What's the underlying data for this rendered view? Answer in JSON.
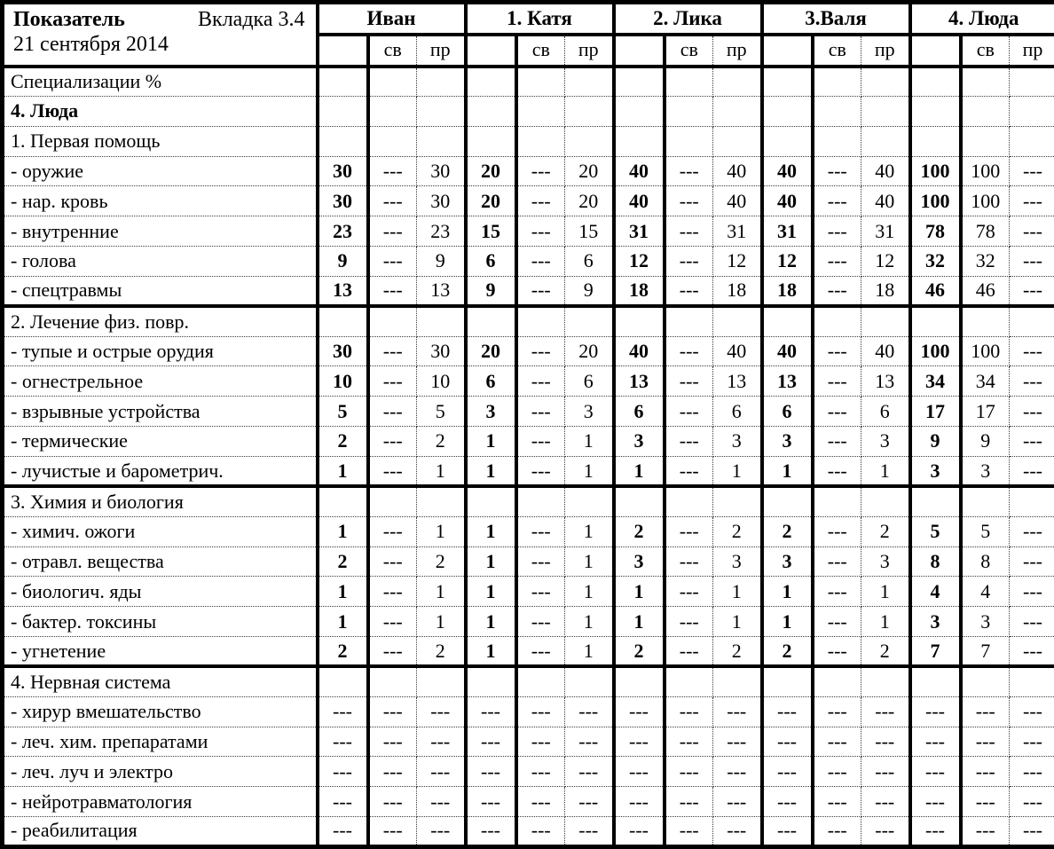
{
  "table": {
    "corner": {
      "title": "Показатель",
      "tab": "Вкладка 3.4",
      "date": "21 сентября 2014"
    },
    "subheaders": {
      "blank": "",
      "sv": "св",
      "pr": "пр"
    },
    "persons": [
      "Иван",
      "1. Катя",
      "2. Лика",
      "3.Валя",
      "4. Люда"
    ],
    "dash": "---",
    "rows": [
      {
        "label": "Специализации %",
        "cells": []
      },
      {
        "label": "4. Люда",
        "bold": true,
        "cells": []
      },
      {
        "label": "1. Первая помощь",
        "cells": []
      },
      {
        "label": "- оружие",
        "cells": [
          "30",
          "---",
          "30",
          "20",
          "---",
          "20",
          "40",
          "---",
          "40",
          "40",
          "---",
          "40",
          "100",
          "100",
          "---"
        ]
      },
      {
        "label": "- нар. кровь",
        "cells": [
          "30",
          "---",
          "30",
          "20",
          "---",
          "20",
          "40",
          "---",
          "40",
          "40",
          "---",
          "40",
          "100",
          "100",
          "---"
        ]
      },
      {
        "label": "- внутренние",
        "cells": [
          "23",
          "---",
          "23",
          "15",
          "---",
          "15",
          "31",
          "---",
          "31",
          "31",
          "---",
          "31",
          "78",
          "78",
          "---"
        ]
      },
      {
        "label": "- голова",
        "cells": [
          "9",
          "---",
          "9",
          "6",
          "---",
          "6",
          "12",
          "---",
          "12",
          "12",
          "---",
          "12",
          "32",
          "32",
          "---"
        ]
      },
      {
        "label": "- спецтравмы",
        "cells": [
          "13",
          "---",
          "13",
          "9",
          "---",
          "9",
          "18",
          "---",
          "18",
          "18",
          "---",
          "18",
          "46",
          "46",
          "---"
        ]
      },
      {
        "label": "2. Лечение физ. повр.",
        "section": true,
        "cells": []
      },
      {
        "label": "- тупые и острые орудия",
        "cells": [
          "30",
          "---",
          "30",
          "20",
          "---",
          "20",
          "40",
          "---",
          "40",
          "40",
          "---",
          "40",
          "100",
          "100",
          "---"
        ]
      },
      {
        "label": "- огнестрельное",
        "cells": [
          "10",
          "---",
          "10",
          "6",
          "---",
          "6",
          "13",
          "---",
          "13",
          "13",
          "---",
          "13",
          "34",
          "34",
          "---"
        ]
      },
      {
        "label": "- взрывные устройства",
        "cells": [
          "5",
          "---",
          "5",
          "3",
          "---",
          "3",
          "6",
          "---",
          "6",
          "6",
          "---",
          "6",
          "17",
          "17",
          "---"
        ]
      },
      {
        "label": "- термические",
        "cells": [
          "2",
          "---",
          "2",
          "1",
          "---",
          "1",
          "3",
          "---",
          "3",
          "3",
          "---",
          "3",
          "9",
          "9",
          "---"
        ]
      },
      {
        "label": "- лучистые и барометрич.",
        "cells": [
          "1",
          "---",
          "1",
          "1",
          "---",
          "1",
          "1",
          "---",
          "1",
          "1",
          "---",
          "1",
          "3",
          "3",
          "---"
        ]
      },
      {
        "label": "3. Химия и биология",
        "section": true,
        "cells": []
      },
      {
        "label": "- химич. ожоги",
        "cells": [
          "1",
          "---",
          "1",
          "1",
          "---",
          "1",
          "2",
          "---",
          "2",
          "2",
          "---",
          "2",
          "5",
          "5",
          "---"
        ]
      },
      {
        "label": "- отравл. вещества",
        "cells": [
          "2",
          "---",
          "2",
          "1",
          "---",
          "1",
          "3",
          "---",
          "3",
          "3",
          "---",
          "3",
          "8",
          "8",
          "---"
        ]
      },
      {
        "label": "- биологич. яды",
        "cells": [
          "1",
          "---",
          "1",
          "1",
          "---",
          "1",
          "1",
          "---",
          "1",
          "1",
          "---",
          "1",
          "4",
          "4",
          "---"
        ]
      },
      {
        "label": "- бактер. токсины",
        "cells": [
          "1",
          "---",
          "1",
          "1",
          "---",
          "1",
          "1",
          "---",
          "1",
          "1",
          "---",
          "1",
          "3",
          "3",
          "---"
        ]
      },
      {
        "label": "- угнетение",
        "cells": [
          "2",
          "---",
          "2",
          "1",
          "---",
          "1",
          "2",
          "---",
          "2",
          "2",
          "---",
          "2",
          "7",
          "7",
          "---"
        ]
      },
      {
        "label": "4. Нервная система",
        "section": true,
        "cells": []
      },
      {
        "label": "- хирур вмешательство",
        "cells": [
          "---",
          "---",
          "---",
          "---",
          "---",
          "---",
          "---",
          "---",
          "---",
          "---",
          "---",
          "---",
          "---",
          "---",
          "---"
        ]
      },
      {
        "label": "- леч. хим. препаратами",
        "cells": [
          "---",
          "---",
          "---",
          "---",
          "---",
          "---",
          "---",
          "---",
          "---",
          "---",
          "---",
          "---",
          "---",
          "---",
          "---"
        ]
      },
      {
        "label": "- леч. луч и электро",
        "cells": [
          "---",
          "---",
          "---",
          "---",
          "---",
          "---",
          "---",
          "---",
          "---",
          "---",
          "---",
          "---",
          "---",
          "---",
          "---"
        ]
      },
      {
        "label": "- нейротравматология",
        "cells": [
          "---",
          "---",
          "---",
          "---",
          "---",
          "---",
          "---",
          "---",
          "---",
          "---",
          "---",
          "---",
          "---",
          "---",
          "---"
        ]
      },
      {
        "label": "- реабилитация",
        "cells": [
          "---",
          "---",
          "---",
          "---",
          "---",
          "---",
          "---",
          "---",
          "---",
          "---",
          "---",
          "---",
          "---",
          "---",
          "---"
        ]
      }
    ]
  }
}
